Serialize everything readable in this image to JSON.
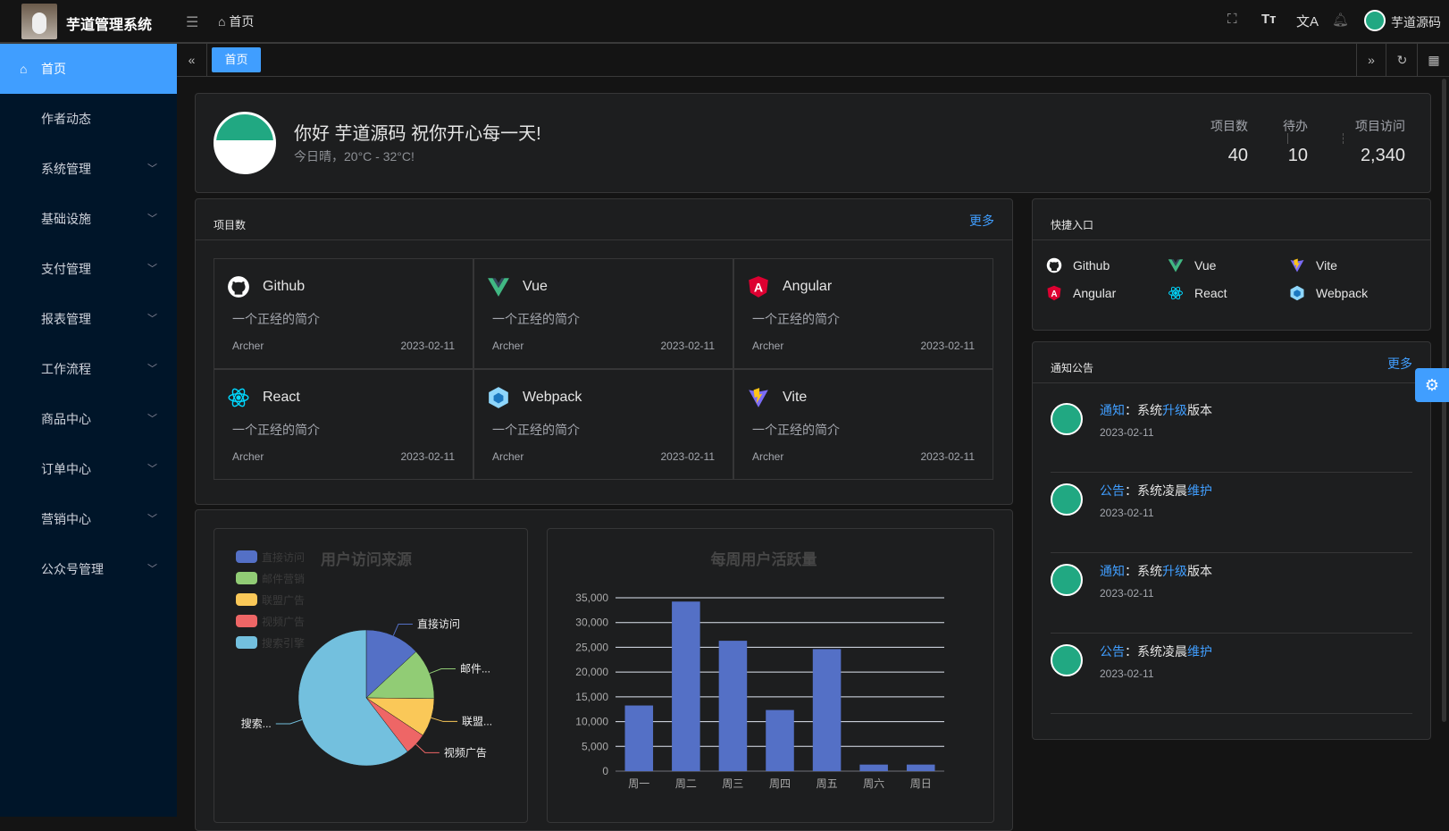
{
  "header": {
    "title": "芋道管理系统",
    "breadcrumb": "首页",
    "user_name": "芋道源码",
    "icons": [
      "fullscreen-icon",
      "font-size-icon",
      "translate-icon",
      "bell-icon"
    ]
  },
  "sidebar": {
    "items": [
      {
        "label": "首页",
        "active": true
      },
      {
        "label": "作者动态"
      },
      {
        "label": "系统管理",
        "expandable": true
      },
      {
        "label": "基础设施",
        "expandable": true
      },
      {
        "label": "支付管理",
        "expandable": true
      },
      {
        "label": "报表管理",
        "expandable": true
      },
      {
        "label": "工作流程",
        "expandable": true
      },
      {
        "label": "商品中心",
        "expandable": true
      },
      {
        "label": "订单中心",
        "expandable": true
      },
      {
        "label": "营销中心",
        "expandable": true
      },
      {
        "label": "公众号管理",
        "expandable": true
      }
    ]
  },
  "tabs": {
    "items": [
      {
        "label": "首页",
        "active": true
      }
    ]
  },
  "welcome": {
    "greeting": "你好 芋道源码 祝你开心每一天!",
    "weather": "今日晴，20°C - 32°C!",
    "stats": [
      {
        "label": "项目数",
        "value": "40"
      },
      {
        "label": "待办",
        "value": "10"
      },
      {
        "label": "项目访问",
        "value": "2,340"
      }
    ]
  },
  "projects": {
    "title": "项目数",
    "more": "更多",
    "items": [
      {
        "name": "Github",
        "icon": "github-icon",
        "desc": "一个正经的简介",
        "author": "Archer",
        "date": "2023-02-11"
      },
      {
        "name": "Vue",
        "icon": "vue-icon",
        "desc": "一个正经的简介",
        "author": "Archer",
        "date": "2023-02-11"
      },
      {
        "name": "Angular",
        "icon": "angular-icon",
        "desc": "一个正经的简介",
        "author": "Archer",
        "date": "2023-02-11"
      },
      {
        "name": "React",
        "icon": "react-icon",
        "desc": "一个正经的简介",
        "author": "Archer",
        "date": "2023-02-11"
      },
      {
        "name": "Webpack",
        "icon": "webpack-icon",
        "desc": "一个正经的简介",
        "author": "Archer",
        "date": "2023-02-11"
      },
      {
        "name": "Vite",
        "icon": "vite-icon",
        "desc": "一个正经的简介",
        "author": "Archer",
        "date": "2023-02-11"
      }
    ]
  },
  "quick": {
    "title": "快捷入口",
    "items": [
      {
        "name": "Github",
        "icon": "github-icon"
      },
      {
        "name": "Vue",
        "icon": "vue-icon"
      },
      {
        "name": "Vite",
        "icon": "vite-icon"
      },
      {
        "name": "Angular",
        "icon": "angular-icon"
      },
      {
        "name": "React",
        "icon": "react-icon"
      },
      {
        "name": "Webpack",
        "icon": "webpack-icon"
      }
    ]
  },
  "notices": {
    "title": "通知公告",
    "more": "更多",
    "items": [
      {
        "type": "通知",
        "sep": "：",
        "pre": "系统",
        "hl": "升级",
        "post": "版本",
        "date": "2023-02-11"
      },
      {
        "type": "公告",
        "sep": "：",
        "pre": "系统凌晨",
        "hl": "维护",
        "post": "",
        "date": "2023-02-11"
      },
      {
        "type": "通知",
        "sep": "：",
        "pre": "系统",
        "hl": "升级",
        "post": "版本",
        "date": "2023-02-11"
      },
      {
        "type": "公告",
        "sep": "：",
        "pre": "系统凌晨",
        "hl": "维护",
        "post": "",
        "date": "2023-02-11"
      }
    ]
  },
  "colors": {
    "accent": "#409eff",
    "sidebar": "#001529"
  },
  "chart_data": [
    {
      "type": "pie",
      "title": "用户访问来源",
      "legend_position": "top-left",
      "categories": [
        "直接访问",
        "邮件营销",
        "联盟广告",
        "视频广告",
        "搜索引擎"
      ],
      "labels": [
        "直接访问",
        "邮件...",
        "联盟...",
        "视频广告",
        "搜索..."
      ],
      "values": [
        335,
        310,
        234,
        135,
        1548
      ],
      "colors": [
        "#5470c6",
        "#91cc75",
        "#fac858",
        "#ee6666",
        "#73c0de"
      ]
    },
    {
      "type": "bar",
      "title": "每周用户活跃量",
      "categories": [
        "周一",
        "周二",
        "周三",
        "周四",
        "周五",
        "周六",
        "周日"
      ],
      "values": [
        13253,
        34235,
        26321,
        12340,
        24643,
        1322,
        1324
      ],
      "ylim": [
        0,
        35000
      ],
      "yticks": [
        "0",
        "5,000",
        "10,000",
        "15,000",
        "20,000",
        "25,000",
        "30,000",
        "35,000"
      ],
      "grid": true,
      "color": "#5470c6"
    }
  ]
}
